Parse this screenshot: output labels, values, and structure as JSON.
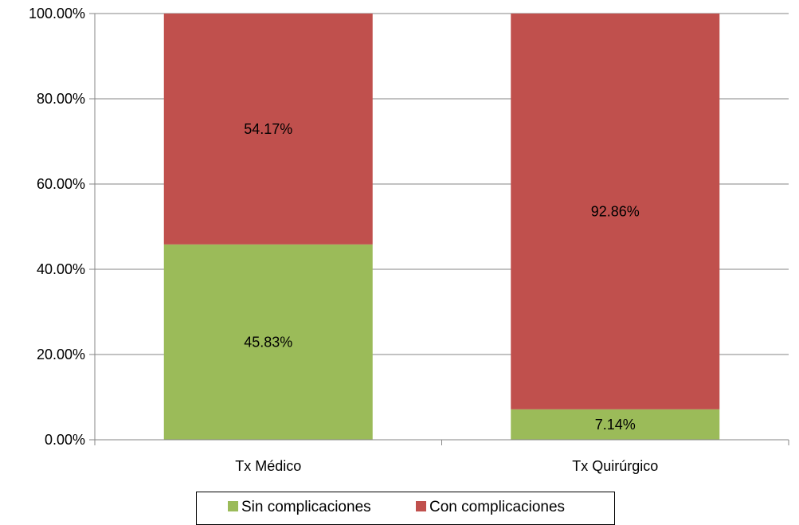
{
  "chart_data": {
    "type": "bar",
    "stacked": true,
    "categories": [
      "Tx Médico",
      "Tx Quirúrgico"
    ],
    "series": [
      {
        "name": "Sin complicaciones",
        "values": [
          45.83,
          7.14
        ],
        "labels": [
          "45.83%",
          "7.14%"
        ],
        "color": "#9bbb59"
      },
      {
        "name": "Con complicaciones",
        "values": [
          54.17,
          92.86
        ],
        "labels": [
          "54.17%",
          "92.86%"
        ],
        "color": "#c0504d"
      }
    ],
    "ylim": [
      0,
      100
    ],
    "yticks": [
      0,
      20,
      40,
      60,
      80,
      100
    ],
    "ytick_labels": [
      "0.00%",
      "20.00%",
      "40.00%",
      "60.00%",
      "80.00%",
      "100.00%"
    ],
    "grid": true,
    "legend_position": "bottom",
    "title": "",
    "xlabel": "",
    "ylabel": ""
  }
}
